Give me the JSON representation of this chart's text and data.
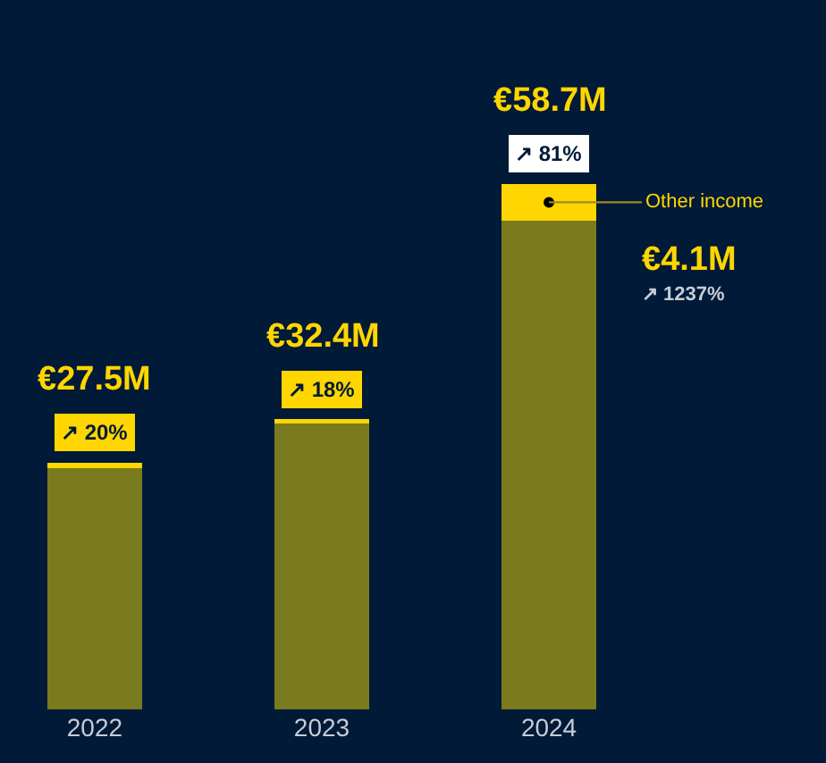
{
  "chart_data": {
    "type": "bar",
    "stacked": true,
    "categories": [
      "2022",
      "2023",
      "2024"
    ],
    "series": [
      {
        "color": "#7a7a1e",
        "values": [
          26.9,
          32.1,
          54.6
        ]
      },
      {
        "name": "Other income",
        "color": "#ffd600",
        "values": [
          0.6,
          0.3,
          4.1
        ],
        "value_labels": [
          null,
          null,
          "€4.1M"
        ]
      }
    ],
    "totals": [
      "€27.5M",
      "€32.4M",
      "€58.7M"
    ],
    "annotations": [
      {
        "text": "↗ 20%",
        "x": "2022",
        "y": 27.5
      },
      {
        "text": "↗ 18%",
        "x": "2023",
        "y": 32.4
      },
      {
        "text": "↗ 81%",
        "x": "2024",
        "y": 58.7
      },
      "↗ 1237%"
    ],
    "tick_labels": "x",
    "grid": false,
    "legend": false
  }
}
